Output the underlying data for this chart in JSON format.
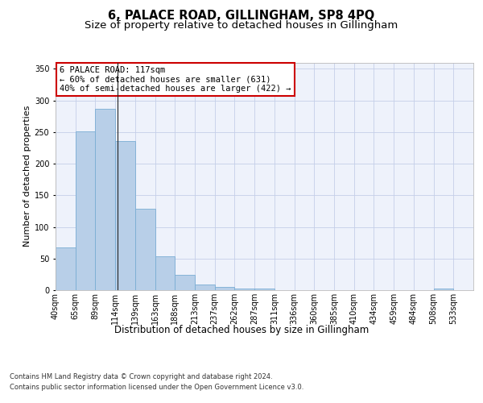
{
  "title": "6, PALACE ROAD, GILLINGHAM, SP8 4PQ",
  "subtitle": "Size of property relative to detached houses in Gillingham",
  "xlabel": "Distribution of detached houses by size in Gillingham",
  "ylabel": "Number of detached properties",
  "bar_color": "#b8cfe8",
  "bar_edge_color": "#7aadd4",
  "background_color": "#eef2fb",
  "grid_color": "#c5cfe8",
  "categories": [
    "40sqm",
    "65sqm",
    "89sqm",
    "114sqm",
    "139sqm",
    "163sqm",
    "188sqm",
    "213sqm",
    "237sqm",
    "262sqm",
    "287sqm",
    "311sqm",
    "336sqm",
    "360sqm",
    "385sqm",
    "410sqm",
    "434sqm",
    "459sqm",
    "484sqm",
    "508sqm",
    "533sqm"
  ],
  "values": [
    68,
    251,
    287,
    236,
    129,
    53,
    24,
    9,
    5,
    3,
    3,
    0,
    0,
    0,
    0,
    0,
    0,
    0,
    0,
    3,
    0
  ],
  "property_bar_index": 3,
  "annotation_line1": "6 PALACE ROAD: 117sqm",
  "annotation_line2": "← 60% of detached houses are smaller (631)",
  "annotation_line3": "40% of semi-detached houses are larger (422) →",
  "annotation_box_color": "#ffffff",
  "annotation_border_color": "#cc0000",
  "vline_x": 3.0,
  "ylim": [
    0,
    360
  ],
  "yticks": [
    0,
    50,
    100,
    150,
    200,
    250,
    300,
    350
  ],
  "footer_line1": "Contains HM Land Registry data © Crown copyright and database right 2024.",
  "footer_line2": "Contains public sector information licensed under the Open Government Licence v3.0.",
  "title_fontsize": 10.5,
  "subtitle_fontsize": 9.5,
  "xlabel_fontsize": 8.5,
  "ylabel_fontsize": 8,
  "tick_fontsize": 7,
  "annotation_fontsize": 7.5,
  "footer_fontsize": 6
}
